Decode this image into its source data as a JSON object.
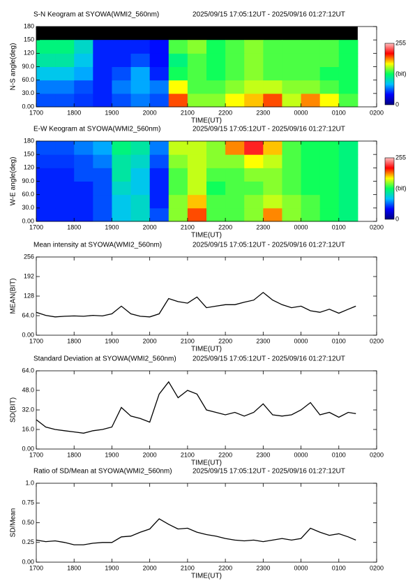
{
  "chart_data": [
    {
      "type": "heatmap",
      "title": "S-N Keogram at SYOWA(WMI2_560nm)",
      "subtitle": "2025/09/15 17:05:12UT - 2025/09/16 01:27:12UT",
      "x_label": "TIME(UT)",
      "y_label": "N-S angle(deg)",
      "x_edges": [
        17,
        17.5,
        18,
        18.5,
        19,
        19.5,
        20,
        20.5,
        21,
        21.5,
        22,
        22.5,
        23,
        23.5,
        24,
        24.5,
        25,
        25.5
      ],
      "y_edges": [
        0,
        30,
        60,
        90,
        120,
        150,
        180
      ],
      "values": [
        [
          60,
          60,
          55,
          50,
          60,
          70,
          60,
          200,
          150,
          150,
          170,
          180,
          200,
          160,
          190,
          170,
          140
        ],
        [
          70,
          70,
          60,
          50,
          70,
          80,
          70,
          170,
          140,
          140,
          150,
          160,
          160,
          150,
          150,
          140,
          130
        ],
        [
          90,
          90,
          80,
          50,
          60,
          80,
          50,
          130,
          140,
          130,
          140,
          150,
          140,
          140,
          140,
          130,
          130
        ],
        [
          110,
          110,
          90,
          50,
          50,
          60,
          45,
          120,
          140,
          130,
          140,
          150,
          140,
          140,
          140,
          140,
          130
        ],
        [
          120,
          120,
          100,
          50,
          50,
          50,
          45,
          140,
          150,
          130,
          140,
          150,
          140,
          140,
          140,
          140,
          130
        ],
        [
          null,
          null,
          null,
          null,
          null,
          null,
          null,
          null,
          null,
          null,
          null,
          null,
          null,
          null,
          null,
          null,
          null
        ]
      ],
      "colorscale": [
        "#000080",
        "#0000ff",
        "#00c0ff",
        "#00ff60",
        "#ffff00",
        "#ff0000",
        "#ffc0c0"
      ],
      "colorbar_ticks": [
        0,
        255
      ],
      "colorbar_label": "(bit)",
      "xlim": [
        17,
        26
      ],
      "ylim": [
        0,
        180
      ],
      "xticks": [
        {
          "value": 17,
          "label": "1700"
        },
        {
          "value": 18,
          "label": "1800"
        },
        {
          "value": 19,
          "label": "1900"
        },
        {
          "value": 20,
          "label": "2000"
        },
        {
          "value": 21,
          "label": "2100"
        },
        {
          "value": 22,
          "label": "2200"
        },
        {
          "value": 23,
          "label": "2300"
        },
        {
          "value": 24,
          "label": "0000"
        },
        {
          "value": 25,
          "label": "0100"
        },
        {
          "value": 26,
          "label": "0200"
        }
      ],
      "yticks": [
        {
          "value": 0,
          "label": "0.00"
        },
        {
          "value": 30,
          "label": "30.0"
        },
        {
          "value": 60,
          "label": "60.0"
        },
        {
          "value": 90,
          "label": "90.0"
        },
        120,
        150,
        180
      ]
    },
    {
      "type": "heatmap",
      "title": "E-W Keogram at SYOWA(WMI2_560nm)",
      "subtitle": "2025/09/15 17:05:12UT - 2025/09/16 01:27:12UT",
      "x_label": "TIME(UT)",
      "y_label": "W-E angle(deg)",
      "x_edges": [
        17,
        17.5,
        18,
        18.5,
        19,
        19.5,
        20,
        20.5,
        21,
        21.5,
        22,
        22.5,
        23,
        23.5,
        24,
        24.5,
        25,
        25.5
      ],
      "y_edges": [
        0,
        30,
        60,
        90,
        120,
        150,
        180
      ],
      "values": [
        [
          50,
          50,
          50,
          60,
          90,
          100,
          60,
          150,
          200,
          140,
          140,
          150,
          190,
          150,
          140,
          130,
          120
        ],
        [
          50,
          50,
          50,
          60,
          90,
          100,
          50,
          150,
          180,
          140,
          140,
          150,
          160,
          150,
          140,
          130,
          120
        ],
        [
          50,
          50,
          50,
          60,
          100,
          90,
          50,
          140,
          160,
          130,
          140,
          140,
          150,
          140,
          130,
          130,
          120
        ],
        [
          50,
          50,
          60,
          60,
          110,
          90,
          50,
          140,
          160,
          140,
          140,
          150,
          150,
          140,
          130,
          130,
          120
        ],
        [
          55,
          55,
          60,
          70,
          110,
          100,
          60,
          150,
          160,
          150,
          150,
          170,
          160,
          140,
          130,
          130,
          120
        ],
        [
          60,
          60,
          70,
          80,
          120,
          110,
          70,
          160,
          160,
          150,
          190,
          220,
          180,
          140,
          130,
          130,
          120
        ]
      ],
      "colorscale": [
        "#000080",
        "#0000ff",
        "#00c0ff",
        "#00ff60",
        "#ffff00",
        "#ff0000",
        "#ffc0c0"
      ],
      "colorbar_ticks": [
        0,
        255
      ],
      "colorbar_label": "(bit)",
      "xlim": [
        17,
        26
      ],
      "ylim": [
        0,
        180
      ],
      "xticks": [
        {
          "value": 17,
          "label": "1700"
        },
        {
          "value": 18,
          "label": "1800"
        },
        {
          "value": 19,
          "label": "1900"
        },
        {
          "value": 20,
          "label": "2000"
        },
        {
          "value": 21,
          "label": "2100"
        },
        {
          "value": 22,
          "label": "2200"
        },
        {
          "value": 23,
          "label": "2300"
        },
        {
          "value": 24,
          "label": "0000"
        },
        {
          "value": 25,
          "label": "0100"
        },
        {
          "value": 26,
          "label": "0200"
        }
      ],
      "yticks": [
        {
          "value": 0,
          "label": "0.00"
        },
        {
          "value": 30,
          "label": "30.0"
        },
        {
          "value": 60,
          "label": "60.0"
        },
        {
          "value": 90,
          "label": "90.0"
        },
        120,
        150,
        180
      ]
    },
    {
      "type": "line",
      "title": "Mean intensity at SYOWA(WMI2_560nm)",
      "subtitle": "2025/09/15 17:05:12UT - 2025/09/16 01:27:12UT",
      "x_label": "TIME(UT)",
      "y_label": "MEAN(BIT)",
      "color": "#000000",
      "x": [
        17,
        17.25,
        17.5,
        17.75,
        18,
        18.25,
        18.5,
        18.75,
        19,
        19.25,
        19.5,
        19.75,
        20,
        20.25,
        20.5,
        20.75,
        21,
        21.25,
        21.5,
        21.75,
        22,
        22.25,
        22.5,
        22.75,
        23,
        23.25,
        23.5,
        23.75,
        24,
        24.25,
        24.5,
        24.75,
        25,
        25.25,
        25.45
      ],
      "values": [
        75,
        65,
        60,
        62,
        63,
        62,
        65,
        63,
        70,
        95,
        70,
        62,
        60,
        70,
        120,
        110,
        105,
        125,
        90,
        95,
        100,
        100,
        108,
        115,
        140,
        115,
        100,
        90,
        95,
        80,
        75,
        85,
        72,
        85,
        95
      ],
      "xlim": [
        17,
        26
      ],
      "ylim": [
        0,
        256
      ],
      "xticks": [
        {
          "value": 17,
          "label": "1700"
        },
        {
          "value": 18,
          "label": "1800"
        },
        {
          "value": 19,
          "label": "1900"
        },
        {
          "value": 20,
          "label": "2000"
        },
        {
          "value": 21,
          "label": "2100"
        },
        {
          "value": 22,
          "label": "2200"
        },
        {
          "value": 23,
          "label": "2300"
        },
        {
          "value": 24,
          "label": "0000"
        },
        {
          "value": 25,
          "label": "0100"
        },
        {
          "value": 26,
          "label": "0200"
        }
      ],
      "yticks": [
        {
          "value": 0,
          "label": "0.00"
        },
        {
          "value": 64,
          "label": "64.0"
        },
        128,
        192,
        256
      ]
    },
    {
      "type": "line",
      "title": "Standard Deviation at SYOWA(WMI2_560nm)",
      "subtitle": "2025/09/15 17:05:12UT - 2025/09/16 01:27:12UT",
      "x_label": "TIME(UT)",
      "y_label": "SD(BIT)",
      "color": "#000000",
      "x": [
        17,
        17.25,
        17.5,
        17.75,
        18,
        18.25,
        18.5,
        18.75,
        19,
        19.25,
        19.5,
        19.75,
        20,
        20.25,
        20.5,
        20.75,
        21,
        21.25,
        21.5,
        21.75,
        22,
        22.25,
        22.5,
        22.75,
        23,
        23.25,
        23.5,
        23.75,
        24,
        24.25,
        24.5,
        24.75,
        25,
        25.25,
        25.45
      ],
      "values": [
        24,
        18,
        16,
        15,
        14,
        13,
        15,
        16,
        18,
        34,
        27,
        25,
        22,
        45,
        55,
        42,
        48,
        45,
        32,
        30,
        28,
        30,
        27,
        30,
        37,
        28,
        27,
        28,
        32,
        38,
        28,
        30,
        26,
        30,
        29
      ],
      "xlim": [
        17,
        26
      ],
      "ylim": [
        0,
        64
      ],
      "xticks": [
        {
          "value": 17,
          "label": "1700"
        },
        {
          "value": 18,
          "label": "1800"
        },
        {
          "value": 19,
          "label": "1900"
        },
        {
          "value": 20,
          "label": "2000"
        },
        {
          "value": 21,
          "label": "2100"
        },
        {
          "value": 22,
          "label": "2200"
        },
        {
          "value": 23,
          "label": "2300"
        },
        {
          "value": 24,
          "label": "0000"
        },
        {
          "value": 25,
          "label": "0100"
        },
        {
          "value": 26,
          "label": "0200"
        }
      ],
      "yticks": [
        {
          "value": 0,
          "label": "0.00"
        },
        {
          "value": 16,
          "label": "16.0"
        },
        {
          "value": 32,
          "label": "32.0"
        },
        {
          "value": 48,
          "label": "48.0"
        },
        {
          "value": 64,
          "label": "64.0"
        }
      ]
    },
    {
      "type": "line",
      "title": "Ratio of SD/Mean at SYOWA(WMI2_560nm)",
      "subtitle": "2025/09/15 17:05:12UT - 2025/09/16 01:27:12UT",
      "x_label": "TIME(UT)",
      "y_label": "SD/Mean",
      "color": "#000000",
      "x": [
        17,
        17.25,
        17.5,
        17.75,
        18,
        18.25,
        18.5,
        18.75,
        19,
        19.25,
        19.5,
        19.75,
        20,
        20.25,
        20.5,
        20.75,
        21,
        21.25,
        21.5,
        21.75,
        22,
        22.25,
        22.5,
        22.75,
        23,
        23.25,
        23.5,
        23.75,
        24,
        24.25,
        24.5,
        24.75,
        25,
        25.25,
        25.45
      ],
      "values": [
        0.28,
        0.26,
        0.27,
        0.25,
        0.22,
        0.22,
        0.24,
        0.25,
        0.25,
        0.32,
        0.33,
        0.38,
        0.42,
        0.55,
        0.48,
        0.42,
        0.43,
        0.38,
        0.35,
        0.33,
        0.3,
        0.28,
        0.27,
        0.28,
        0.26,
        0.28,
        0.3,
        0.28,
        0.3,
        0.43,
        0.38,
        0.34,
        0.36,
        0.32,
        0.28
      ],
      "xlim": [
        17,
        26
      ],
      "ylim": [
        0,
        1
      ],
      "xticks": [
        {
          "value": 17,
          "label": "1700"
        },
        {
          "value": 18,
          "label": "1800"
        },
        {
          "value": 19,
          "label": "1900"
        },
        {
          "value": 20,
          "label": "2000"
        },
        {
          "value": 21,
          "label": "2100"
        },
        {
          "value": 22,
          "label": "2200"
        },
        {
          "value": 23,
          "label": "2300"
        },
        {
          "value": 24,
          "label": "0000"
        },
        {
          "value": 25,
          "label": "0100"
        },
        {
          "value": 26,
          "label": "0200"
        }
      ],
      "yticks": [
        {
          "value": 0,
          "label": "0.00"
        },
        0.25,
        {
          "value": 0.5,
          "label": "0.50"
        },
        0.75,
        {
          "value": 1,
          "label": "1.0"
        }
      ]
    }
  ]
}
